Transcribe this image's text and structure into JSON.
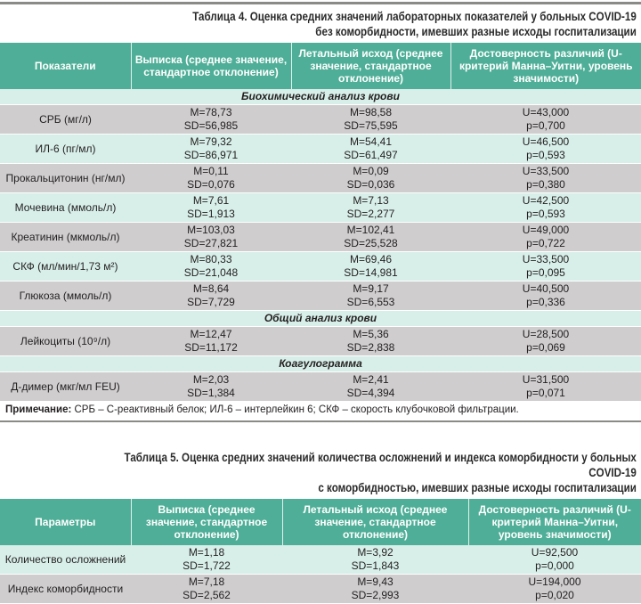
{
  "table4": {
    "title_line1": "Таблица 4. Оценка средних значений лабораторных показателей у больных COVID-19",
    "title_line2": "без коморбидности, имевших разные исходы госпитализации",
    "headers": [
      "Показатели",
      "Выписка (среднее значение, стандартное отклонение)",
      "Летальный исход (среднее значение, стандартное отклонение)",
      "Достоверность различий (U-критерий Манна–Уитни, уровень значимости)"
    ],
    "rows": [
      {
        "type": "section",
        "label": "Биохимический анализ крови"
      },
      {
        "type": "row",
        "shade": "grey",
        "name": "СРБ (мг/л)",
        "discharge": [
          "M=78,73",
          "SD=56,985"
        ],
        "lethal": [
          "M=98,58",
          "SD=75,595"
        ],
        "test": [
          "U=43,000",
          "p=0,700"
        ]
      },
      {
        "type": "row",
        "shade": "teal",
        "name": "ИЛ-6 (пг/мл)",
        "discharge": [
          "M=79,32",
          "SD=86,971"
        ],
        "lethal": [
          "M=54,41",
          "SD=61,497"
        ],
        "test": [
          "U=46,500",
          "p=0,593"
        ]
      },
      {
        "type": "row",
        "shade": "grey",
        "name": "Прокальцитонин (нг/мл)",
        "discharge": [
          "M=0,11",
          "SD=0,076"
        ],
        "lethal": [
          "M=0,09",
          "SD=0,036"
        ],
        "test": [
          "U=33,500",
          "p=0,380"
        ]
      },
      {
        "type": "row",
        "shade": "teal",
        "name": "Мочевина (ммоль/л)",
        "discharge": [
          "M=7,61",
          "SD=1,913"
        ],
        "lethal": [
          "M=7,13",
          "SD=2,277"
        ],
        "test": [
          "U=42,500",
          "p=0,593"
        ]
      },
      {
        "type": "row",
        "shade": "grey",
        "name": "Креатинин (мкмоль/л)",
        "discharge": [
          "M=103,03",
          "SD=27,821"
        ],
        "lethal": [
          "M=102,41",
          "SD=25,528"
        ],
        "test": [
          "U=49,000",
          "p=0,722"
        ]
      },
      {
        "type": "row",
        "shade": "teal",
        "name": "СКФ (мл/мин/1,73 м²)",
        "discharge": [
          "M=80,33",
          "SD=21,048"
        ],
        "lethal": [
          "M=69,46",
          "SD=14,981"
        ],
        "test": [
          "U=33,500",
          "p=0,095"
        ]
      },
      {
        "type": "row",
        "shade": "grey",
        "name": "Глюкоза (ммоль/л)",
        "discharge": [
          "M=8,64",
          "SD=7,729"
        ],
        "lethal": [
          "M=9,17",
          "SD=6,553"
        ],
        "test": [
          "U=40,500",
          "p=0,336"
        ]
      },
      {
        "type": "section",
        "label": "Общий анализ крови"
      },
      {
        "type": "row",
        "shade": "grey",
        "name": "Лейкоциты (10⁹/л)",
        "discharge": [
          "M=12,47",
          "SD=11,172"
        ],
        "lethal": [
          "M=5,36",
          "SD=2,838"
        ],
        "test": [
          "U=28,500",
          "p=0,069"
        ]
      },
      {
        "type": "section",
        "label": "Коагулограмма"
      },
      {
        "type": "row",
        "shade": "grey",
        "name": "Д-димер (мкг/мл FEU)",
        "discharge": [
          "M=2,03",
          "SD=1,384"
        ],
        "lethal": [
          "M=2,41",
          "SD=4,394"
        ],
        "test": [
          "U=31,500",
          "p=0,071"
        ]
      }
    ],
    "note_label": "Примечание:",
    "note_text": " СРБ – С-реактивный белок; ИЛ-6 – интерлейкин 6; СКФ – скорость клубочковой фильтрации."
  },
  "table5": {
    "title_line1": "Таблица 5. Оценка средних значений количества осложнений и индекса коморбидности у больных COVID-19",
    "title_line2": "с коморбидностью, имевших разные исходы госпитализации",
    "headers": [
      "Параметры",
      "Выписка (среднее значение, стандартное отклонение)",
      "Летальный исход (среднее значение, стандартное отклонение)",
      "Достоверность различий (U-критерий Манна–Уитни, уровень значимости)"
    ],
    "rows": [
      {
        "type": "row",
        "shade": "teal",
        "name": "Количество осложнений",
        "discharge": [
          "M=1,18",
          "SD=1,722"
        ],
        "lethal": [
          "M=3,92",
          "SD=1,843"
        ],
        "test": [
          "U=92,500",
          "p=0,000"
        ]
      },
      {
        "type": "row",
        "shade": "grey",
        "name": "Индекс коморбидности",
        "discharge": [
          "M=7,18",
          "SD=2,562"
        ],
        "lethal": [
          "M=9,43",
          "SD=2,993"
        ],
        "test": [
          "U=194,000",
          "p=0,020"
        ]
      }
    ]
  },
  "colors": {
    "header": "#4fae97",
    "row_grey": "#cfcdce",
    "row_teal": "#d8efe9"
  }
}
